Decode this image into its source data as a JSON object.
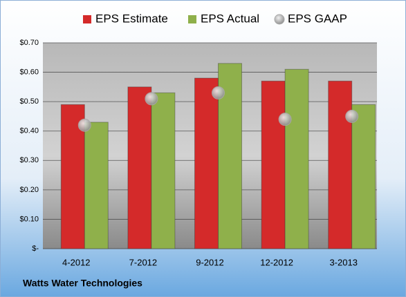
{
  "chart_data": {
    "type": "bar",
    "categories": [
      "4-2012",
      "7-2012",
      "9-2012",
      "12-2012",
      "3-2013"
    ],
    "series": [
      {
        "name": "EPS Estimate",
        "type": "bar",
        "color": "#d42a2a",
        "values": [
          0.49,
          0.55,
          0.58,
          0.57,
          0.57
        ]
      },
      {
        "name": "EPS Actual",
        "type": "bar",
        "color": "#8fb04b",
        "values": [
          0.43,
          0.53,
          0.63,
          0.61,
          0.49
        ]
      },
      {
        "name": "EPS GAAP",
        "type": "scatter",
        "color": "#a9a9a9",
        "values": [
          0.42,
          0.51,
          0.53,
          0.44,
          0.45
        ]
      }
    ],
    "ylim": [
      0,
      0.7
    ],
    "yticks": [
      {
        "value": 0,
        "label": "$-"
      },
      {
        "value": 0.1,
        "label": "$0.10"
      },
      {
        "value": 0.2,
        "label": "$0.20"
      },
      {
        "value": 0.3,
        "label": "$0.30"
      },
      {
        "value": 0.4,
        "label": "$0.40"
      },
      {
        "value": 0.5,
        "label": "$0.50"
      },
      {
        "value": 0.6,
        "label": "$0.60"
      },
      {
        "value": 0.7,
        "label": "$0.70"
      }
    ],
    "grid": true,
    "legend": "top",
    "footer": "Watts Water Technologies"
  }
}
